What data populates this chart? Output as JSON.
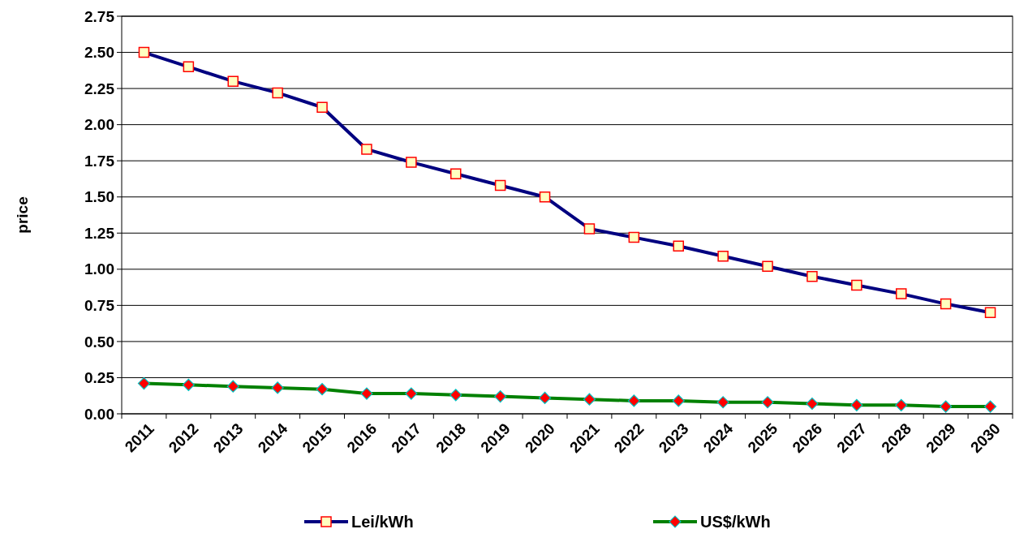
{
  "chart_data": {
    "type": "line",
    "ylabel": "price",
    "categories": [
      "2011",
      "2012",
      "2013",
      "2014",
      "2015",
      "2016",
      "2017",
      "2018",
      "2019",
      "2020",
      "2021",
      "2022",
      "2023",
      "2024",
      "2025",
      "2026",
      "2027",
      "2028",
      "2029",
      "2030"
    ],
    "series": [
      {
        "name": "Lei/kWh",
        "color": "#000080",
        "marker": "square",
        "values": [
          2.5,
          2.4,
          2.3,
          2.22,
          2.12,
          1.83,
          1.74,
          1.66,
          1.58,
          1.5,
          1.28,
          1.22,
          1.16,
          1.09,
          1.02,
          0.95,
          0.89,
          0.83,
          0.76,
          0.7
        ]
      },
      {
        "name": "US$/kWh",
        "color": "#008000",
        "marker": "diamond",
        "values": [
          0.21,
          0.2,
          0.19,
          0.18,
          0.17,
          0.14,
          0.14,
          0.13,
          0.12,
          0.11,
          0.1,
          0.09,
          0.09,
          0.08,
          0.08,
          0.07,
          0.06,
          0.06,
          0.05,
          0.05
        ]
      }
    ],
    "ylim": [
      0,
      2.75
    ],
    "yticks": [
      {
        "value": 0,
        "label": "0.00"
      },
      {
        "value": 0.25,
        "label": "0.25"
      },
      {
        "value": 0.5,
        "label": "0.50"
      },
      {
        "value": 0.75,
        "label": "0.75"
      },
      {
        "value": 1,
        "label": "1.00"
      },
      {
        "value": 1.25,
        "label": "1.25"
      },
      {
        "value": 1.5,
        "label": "1.50"
      },
      {
        "value": 1.75,
        "label": "1.75"
      },
      {
        "value": 2,
        "label": "2.00"
      },
      {
        "value": 2.25,
        "label": "2.25"
      },
      {
        "value": 2.5,
        "label": "2.50"
      },
      {
        "value": 2.75,
        "label": "2.75"
      }
    ],
    "grid": "y",
    "legend": "bottom",
    "line_style": "solid"
  }
}
